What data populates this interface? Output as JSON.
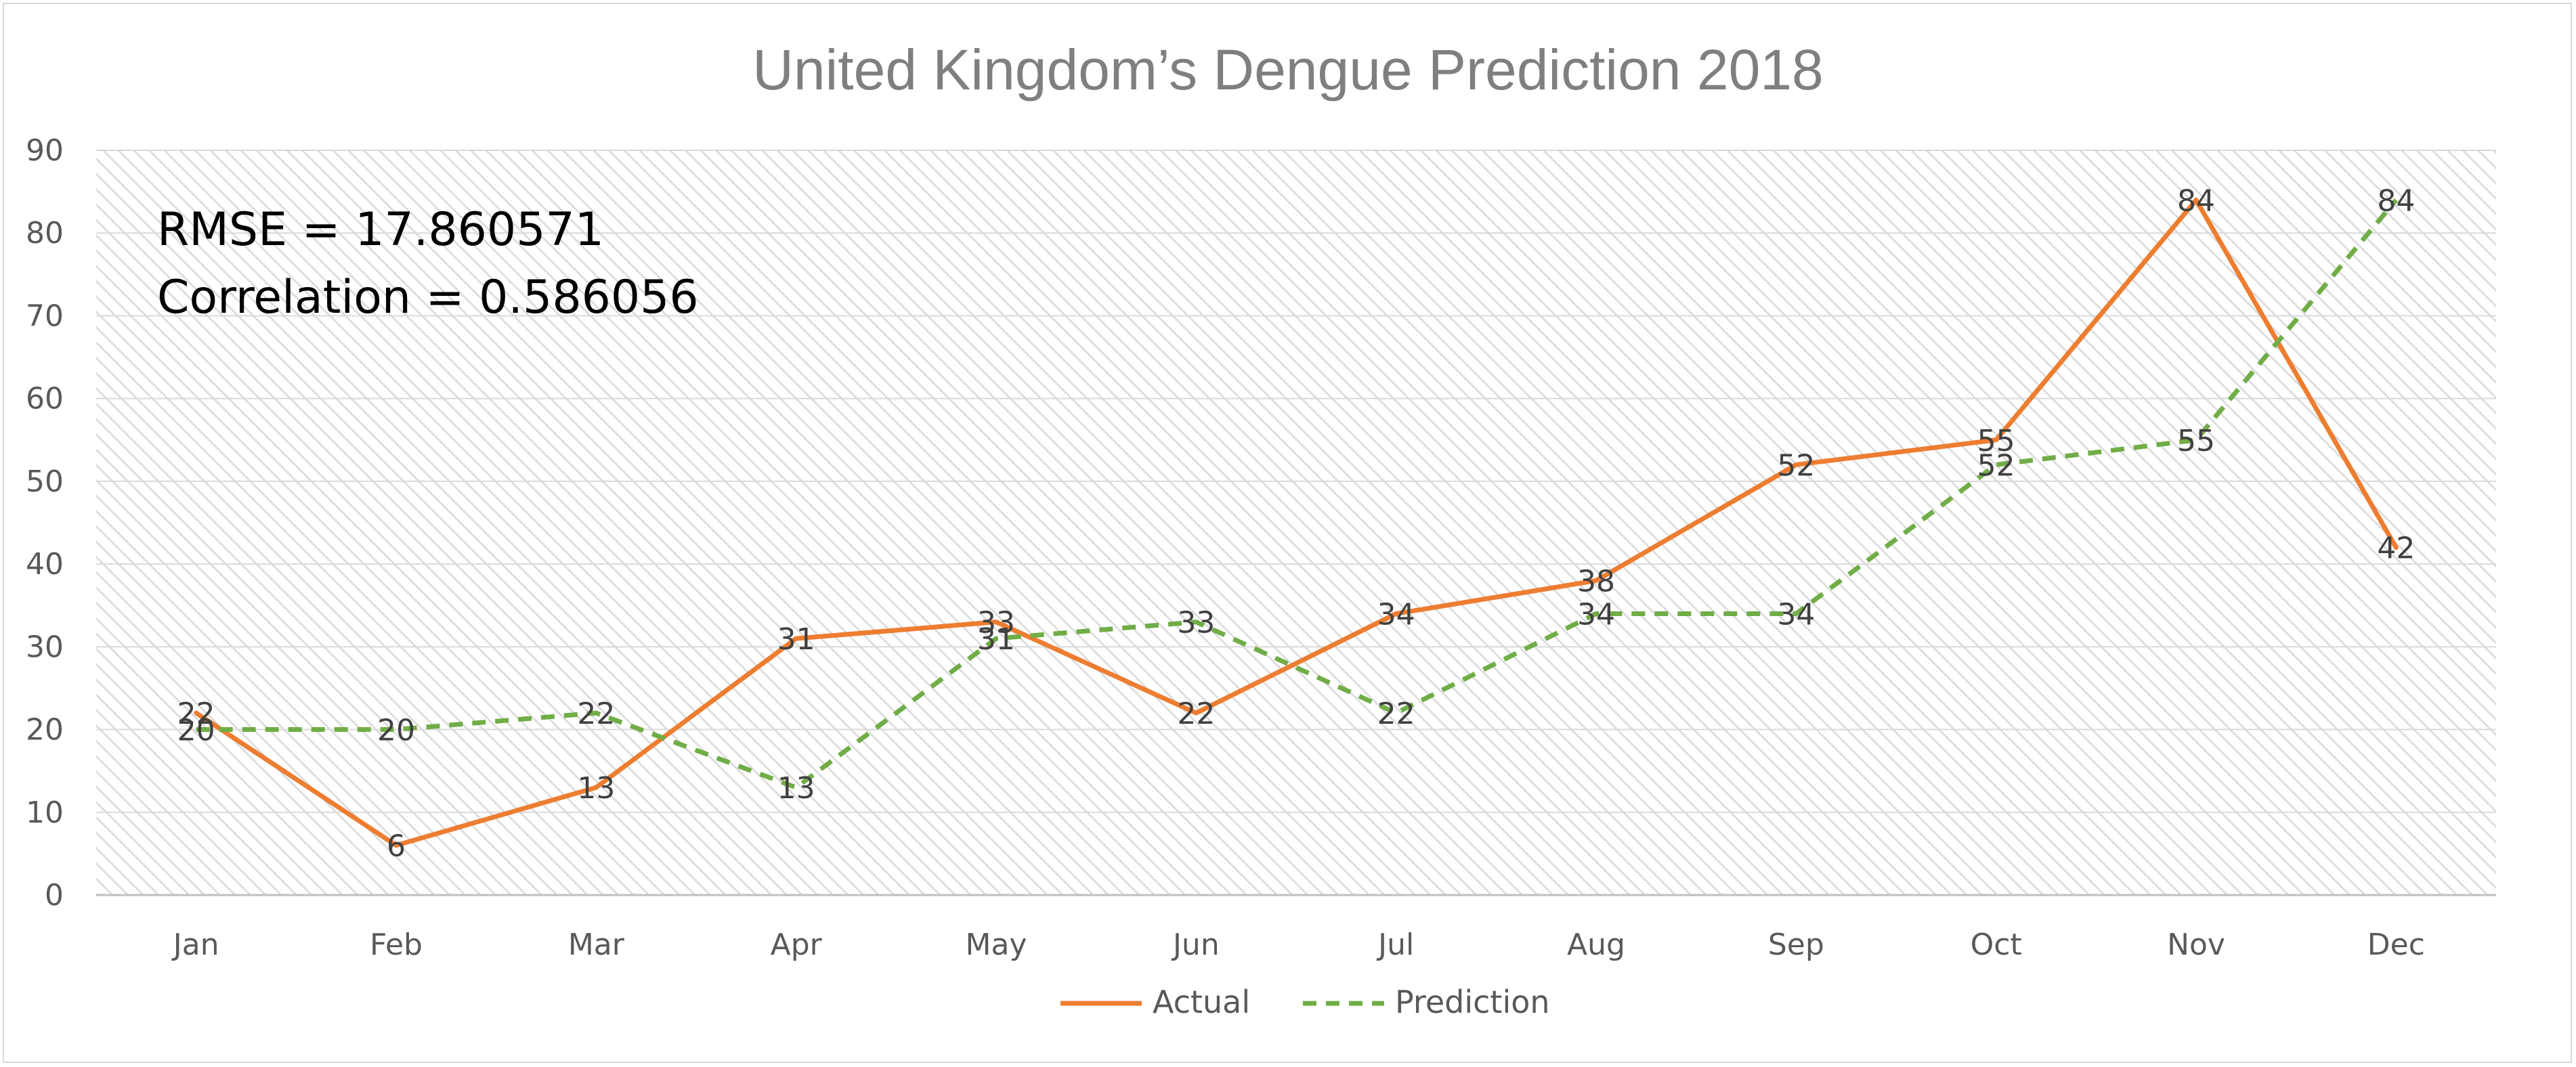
{
  "chart_data": {
    "type": "line",
    "title": "United Kingdom’s Dengue Prediction 2018",
    "xlabel": "",
    "ylabel": "",
    "categories": [
      "Jan",
      "Feb",
      "Mar",
      "Apr",
      "May",
      "Jun",
      "Jul",
      "Aug",
      "Sep",
      "Oct",
      "Nov",
      "Dec"
    ],
    "ylim": [
      0,
      90
    ],
    "yticks": [
      0,
      10,
      20,
      30,
      40,
      50,
      60,
      70,
      80,
      90
    ],
    "grid": true,
    "legend_placement": "bottom",
    "annotations": [
      "RMSE = 17.860571",
      "Correlation = 0.586056"
    ],
    "series": [
      {
        "name": "Actual",
        "color": "#ed7d31",
        "dash": "solid",
        "values": [
          22,
          6,
          13,
          31,
          33,
          22,
          34,
          38,
          52,
          55,
          84,
          42
        ]
      },
      {
        "name": "Prediction",
        "color": "#70ad47",
        "dash": "dashed",
        "values": [
          20,
          20,
          22,
          13,
          31,
          33,
          22,
          34,
          34,
          52,
          55,
          84
        ]
      }
    ]
  }
}
